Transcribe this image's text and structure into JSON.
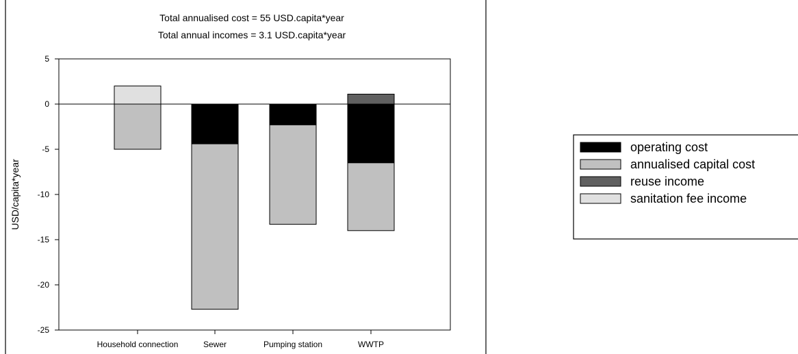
{
  "chart_data": {
    "type": "bar",
    "stacked": true,
    "title": "",
    "subtitles": [
      "Total annualised cost = 55  USD.capita*year",
      "Total annual incomes = 3.1 USD.capita*year"
    ],
    "xlabel": "",
    "ylabel": "USD/capita*year",
    "ylim": [
      -25,
      5
    ],
    "yticks": [
      5,
      0,
      -5,
      -10,
      -15,
      -20,
      -25
    ],
    "categories": [
      "Household connection",
      "Sewer",
      "Pumping station",
      "WWTP"
    ],
    "series": [
      {
        "name": "operating cost",
        "color": "#000000",
        "values": [
          0,
          -4.4,
          -2.3,
          -6.5
        ]
      },
      {
        "name": "annualised capital cost",
        "color": "#c0c0c0",
        "values": [
          -5.0,
          -18.3,
          -11.0,
          -7.5
        ]
      },
      {
        "name": "reuse income",
        "color": "#606060",
        "values": [
          0,
          0,
          0,
          1.1
        ]
      },
      {
        "name": "sanitation fee income",
        "color": "#e0e0e0",
        "values": [
          2.0,
          0,
          0,
          0
        ]
      }
    ],
    "grid": false,
    "legend_position": "right",
    "zero_line": true
  }
}
